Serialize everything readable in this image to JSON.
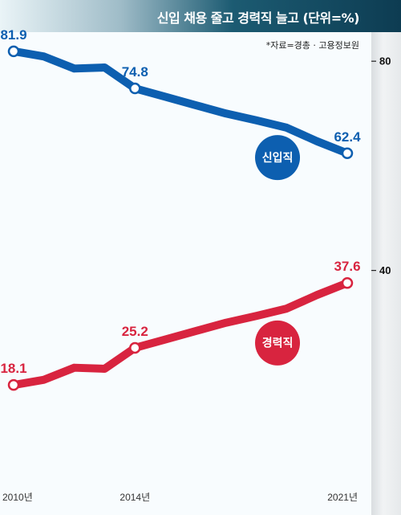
{
  "title": "신입 채용 줄고 경력직 늘고 (단위=%)",
  "source": "*자료=경총 · 고용정보원",
  "chart_data": {
    "type": "line",
    "x": [
      2010,
      2011,
      2012,
      2013,
      2014,
      2015,
      2016,
      2017,
      2018,
      2019,
      2020,
      2021
    ],
    "xticks": [
      {
        "x": 2010,
        "label": "2010년"
      },
      {
        "x": 2014,
        "label": "2014년"
      },
      {
        "x": 2021,
        "label": "2021년"
      }
    ],
    "ylim": [
      0,
      87
    ],
    "yticks": [
      {
        "value": 80,
        "label": "80"
      },
      {
        "value": 40,
        "label": "40"
      }
    ],
    "series": [
      {
        "name": "신입직",
        "color": "#0d5fb0",
        "values": [
          81.9,
          80.9,
          78.6,
          78.8,
          74.8,
          73.2,
          71.6,
          70.0,
          68.7,
          67.3,
          64.7,
          62.4
        ],
        "labels": [
          {
            "x": 2010,
            "text": "81.9"
          },
          {
            "x": 2014,
            "text": "74.8"
          },
          {
            "x": 2021,
            "text": "62.4"
          }
        ],
        "badge_x": 2018.7
      },
      {
        "name": "경력직",
        "color": "#d8243f",
        "values": [
          18.1,
          19.1,
          21.4,
          21.2,
          25.2,
          26.8,
          28.4,
          30.0,
          31.3,
          32.7,
          35.3,
          37.6
        ],
        "labels": [
          {
            "x": 2010,
            "text": "18.1"
          },
          {
            "x": 2014,
            "text": "25.2"
          },
          {
            "x": 2021,
            "text": "37.6"
          }
        ],
        "badge_x": 2018.7
      }
    ]
  }
}
